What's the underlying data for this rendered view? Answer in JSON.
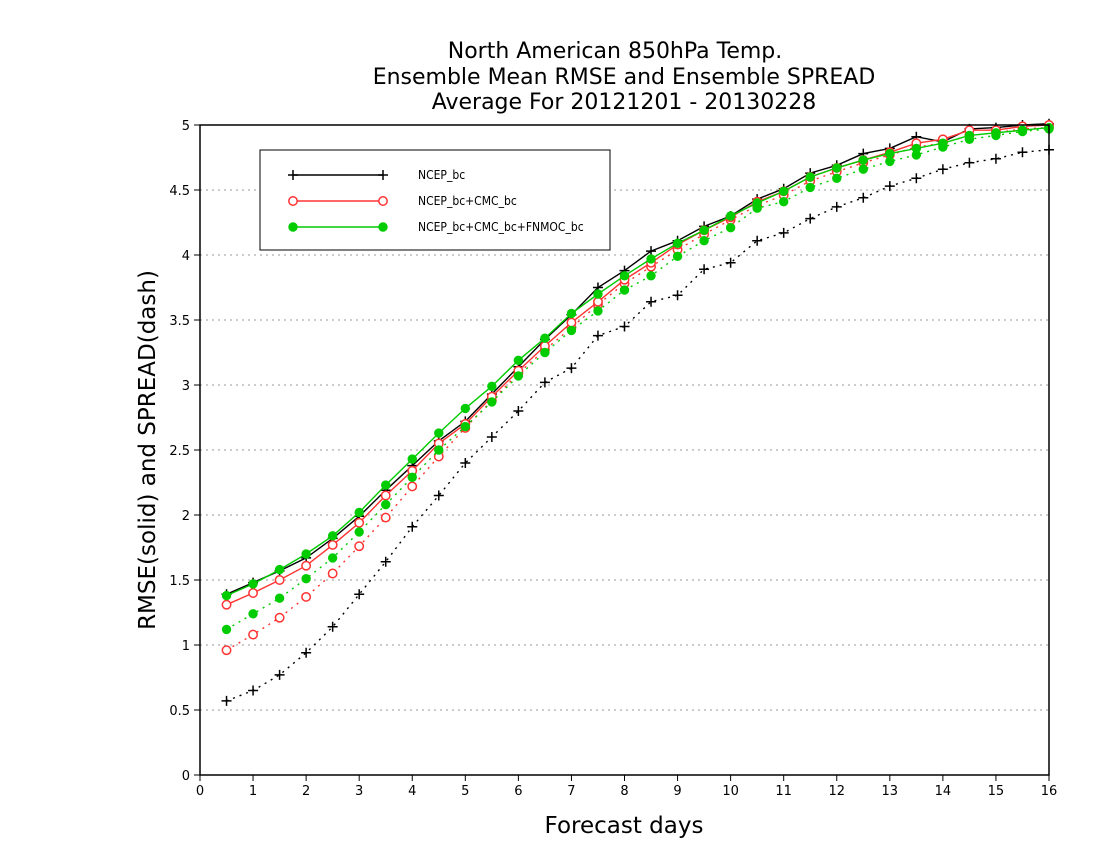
{
  "chart_data": {
    "type": "line",
    "title_lines": [
      "North American 850hPa Temp.",
      "Ensemble Mean RMSE and Ensemble SPREAD",
      "Average For 20121201 - 20130228"
    ],
    "xlabel": "Forecast days",
    "ylabel": "RMSE(solid) and SPREAD(dash)",
    "xlim": [
      0,
      16
    ],
    "ylim": [
      0,
      5
    ],
    "x_ticks": [
      "0",
      "1",
      "2",
      "3",
      "4",
      "5",
      "6",
      "7",
      "8",
      "9",
      "10",
      "11",
      "12",
      "13",
      "14",
      "15",
      "16"
    ],
    "y_ticks": [
      "0",
      "0.5",
      "1",
      "1.5",
      "2",
      "2.5",
      "3",
      "3.5",
      "4",
      "4.5",
      "5"
    ],
    "grid": "horizontal dotted",
    "legend_position": "top-left",
    "x": [
      0.5,
      1,
      1.5,
      2,
      2.5,
      3,
      3.5,
      4,
      4.5,
      5,
      5.5,
      6,
      6.5,
      7,
      7.5,
      8,
      8.5,
      9,
      9.5,
      10,
      10.5,
      11,
      11.5,
      12,
      12.5,
      13,
      13.5,
      14,
      14.5,
      15,
      15.5,
      16
    ],
    "series": [
      {
        "name": "NCEP_bc",
        "color": "#000000",
        "marker": "plus",
        "rmse": [
          1.39,
          1.48,
          1.57,
          1.67,
          1.82,
          1.99,
          2.19,
          2.38,
          2.57,
          2.72,
          2.93,
          3.14,
          3.35,
          3.54,
          3.75,
          3.88,
          4.03,
          4.11,
          4.22,
          4.3,
          4.43,
          4.51,
          4.63,
          4.69,
          4.78,
          4.82,
          4.91,
          4.87,
          4.97,
          4.98,
          5.0,
          5.01
        ],
        "spread": [
          0.57,
          0.65,
          0.77,
          0.94,
          1.14,
          1.39,
          1.64,
          1.91,
          2.15,
          2.4,
          2.6,
          2.8,
          3.02,
          3.13,
          3.38,
          3.45,
          3.64,
          3.69,
          3.89,
          3.94,
          4.11,
          4.17,
          4.28,
          4.37,
          4.44,
          4.53,
          4.59,
          4.66,
          4.71,
          4.74,
          4.79,
          4.81
        ]
      },
      {
        "name": "NCEP_bc+CMC_bc",
        "color": "#ff3333",
        "marker": "open-circle",
        "rmse": [
          1.31,
          1.4,
          1.5,
          1.61,
          1.77,
          1.94,
          2.15,
          2.34,
          2.55,
          2.7,
          2.91,
          3.11,
          3.3,
          3.48,
          3.64,
          3.81,
          3.94,
          4.08,
          4.19,
          4.29,
          4.41,
          4.49,
          4.6,
          4.67,
          4.73,
          4.79,
          4.86,
          4.89,
          4.96,
          4.96,
          4.99,
          5.0
        ],
        "spread": [
          0.96,
          1.08,
          1.21,
          1.37,
          1.55,
          1.76,
          1.98,
          2.22,
          2.45,
          2.67,
          2.88,
          3.09,
          3.27,
          3.44,
          3.62,
          3.78,
          3.91,
          4.04,
          4.16,
          4.27,
          4.38,
          4.46,
          4.57,
          4.64,
          4.71,
          4.77,
          4.83,
          4.86,
          4.92,
          4.94,
          4.97,
          4.98
        ]
      },
      {
        "name": "NCEP_bc+CMC_bc+FNMOC_bc",
        "color": "#00cc00",
        "marker": "filled-circle",
        "rmse": [
          1.38,
          1.47,
          1.58,
          1.7,
          1.84,
          2.02,
          2.23,
          2.43,
          2.63,
          2.82,
          2.99,
          3.19,
          3.36,
          3.55,
          3.7,
          3.84,
          3.97,
          4.09,
          4.19,
          4.3,
          4.4,
          4.49,
          4.6,
          4.67,
          4.73,
          4.78,
          4.82,
          4.86,
          4.92,
          4.94,
          4.96,
          4.98
        ],
        "spread": [
          1.12,
          1.24,
          1.36,
          1.51,
          1.67,
          1.87,
          2.08,
          2.29,
          2.5,
          2.68,
          2.87,
          3.07,
          3.25,
          3.42,
          3.57,
          3.73,
          3.84,
          3.99,
          4.11,
          4.21,
          4.36,
          4.41,
          4.52,
          4.59,
          4.66,
          4.72,
          4.77,
          4.83,
          4.89,
          4.92,
          4.95,
          4.97
        ]
      }
    ]
  }
}
